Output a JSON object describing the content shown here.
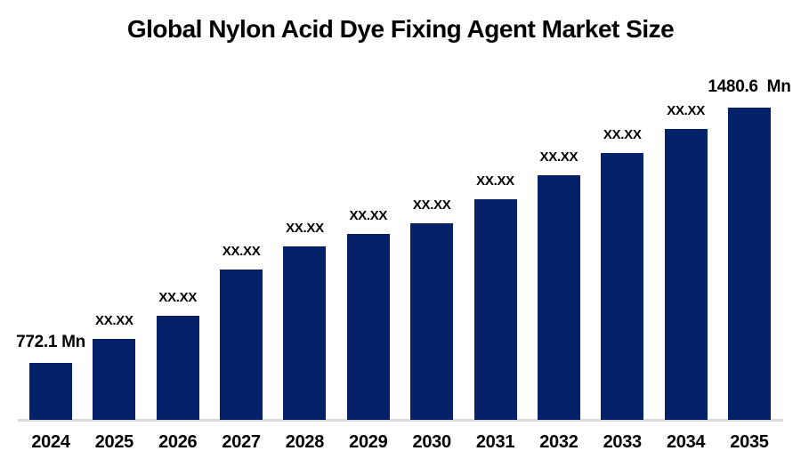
{
  "title": "Global Nylon Acid Dye Fixing Agent Market Size",
  "unit_label": "Mn",
  "colors": {
    "bar": "#042169",
    "axis_line": "#d9d9d9",
    "text": "#000000",
    "background": "#ffffff"
  },
  "chart_data": {
    "type": "bar",
    "title": "Global Nylon Acid Dye Fixing Agent Market Size",
    "categories": [
      "2024",
      "2025",
      "2026",
      "2027",
      "2028",
      "2029",
      "2030",
      "2031",
      "2032",
      "2033",
      "2034",
      "2035"
    ],
    "values": [
      772.1,
      838.8,
      903.0,
      1031.3,
      1095.5,
      1130.1,
      1159.7,
      1226.4,
      1293.1,
      1354.8,
      1421.5,
      1480.6
    ],
    "values_estimated": true,
    "value_labels": [
      "772.1 Mn",
      "XX.XX",
      "XX.XX",
      "XX.XX",
      "XX.XX",
      "XX.XX",
      "XX.XX",
      "XX.XX",
      "XX.XX",
      "XX.XX",
      "XX.XX",
      "1480.6  Mn"
    ],
    "xlabel": "",
    "ylabel": "",
    "ylim": [
      772.1,
      1480.6
    ],
    "grid": false,
    "legend": "none",
    "y_axis_shown": false,
    "x_axis_line_shown": true
  }
}
